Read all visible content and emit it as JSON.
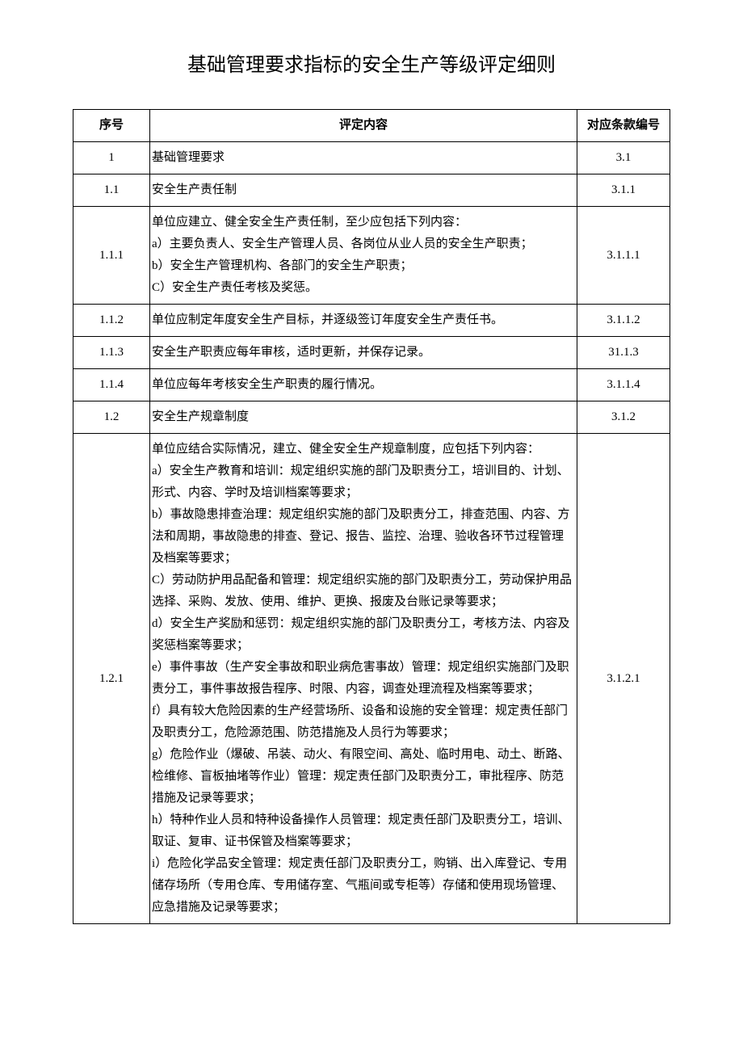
{
  "document": {
    "title": "基础管理要求指标的安全生产等级评定细则",
    "columns": {
      "seq": "序号",
      "content": "评定内容",
      "ref": "对应条款编号"
    },
    "rows": [
      {
        "seq": "1",
        "content": "基础管理要求",
        "ref": "3.1"
      },
      {
        "seq": "1.1",
        "content": "安全生产责任制",
        "ref": "3.1.1"
      },
      {
        "seq": "1.1.1",
        "content": "单位应建立、健全安全生产责任制，至少应包括下列内容：\na）主要负责人、安全生产管理人员、各岗位从业人员的安全生产职责；\nb）安全生产管理机构、各部门的安全生产职责；\nC）安全生产责任考核及奖惩。",
        "ref": "3.1.1.1"
      },
      {
        "seq": "1.1.2",
        "content": "单位应制定年度安全生产目标，并逐级签订年度安全生产责任书。",
        "ref": "3.1.1.2"
      },
      {
        "seq": "1.1.3",
        "content": "安全生产职责应每年审核，适时更新，并保存记录。",
        "ref": "31.1.3"
      },
      {
        "seq": "1.1.4",
        "content": "单位应每年考核安全生产职责的履行情况。",
        "ref": "3.1.1.4"
      },
      {
        "seq": "1.2",
        "content": "安全生产规章制度",
        "ref": "3.1.2"
      },
      {
        "seq": "1.2.1",
        "content": "单位应结合实际情况，建立、健全安全生产规章制度，应包括下列内容：\na）安全生产教育和培训：规定组织实施的部门及职责分工，培训目的、计划、形式、内容、学时及培训档案等要求；\nb）事故隐患排查治理：规定组织实施的部门及职责分工，排查范围、内容、方法和周期，事故隐患的排查、登记、报告、监控、治理、验收各环节过程管理及档案等要求；\nC）劳动防护用品配备和管理：规定组织实施的部门及职责分工，劳动保护用品选择、采购、发放、使用、维护、更换、报废及台账记录等要求；\nd）安全生产奖励和惩罚：规定组织实施的部门及职责分工，考核方法、内容及奖惩档案等要求；\ne）事件事故（生产安全事故和职业病危害事故）管理：规定组织实施部门及职责分工，事件事故报告程序、时限、内容，调查处理流程及档案等要求；\nf）具有较大危险因素的生产经营场所、设备和设施的安全管理：规定责任部门及职责分工，危险源范围、防范措施及人员行为等要求；\ng）危险作业（爆破、吊装、动火、有限空间、高处、临时用电、动土、断路、检维修、盲板抽堵等作业）管理：规定责任部门及职责分工，审批程序、防范措施及记录等要求；\nh）特种作业人员和特种设备操作人员管理：规定责任部门及职责分工，培训、取证、复审、证书保管及档案等要求；\ni）危险化学品安全管理：规定责任部门及职责分工，购销、出入库登记、专用储存场所（专用仓库、专用储存室、气瓶间或专柜等）存储和使用现场管理、应急措施及记录等要求；",
        "ref": "3.1.2.1"
      }
    ],
    "layout": {
      "col_widths": {
        "seq": 95,
        "ref": 115
      },
      "font_size": 15,
      "title_font_size": 24,
      "line_height": 1.8,
      "border_color": "#000000",
      "background_color": "#ffffff"
    }
  }
}
